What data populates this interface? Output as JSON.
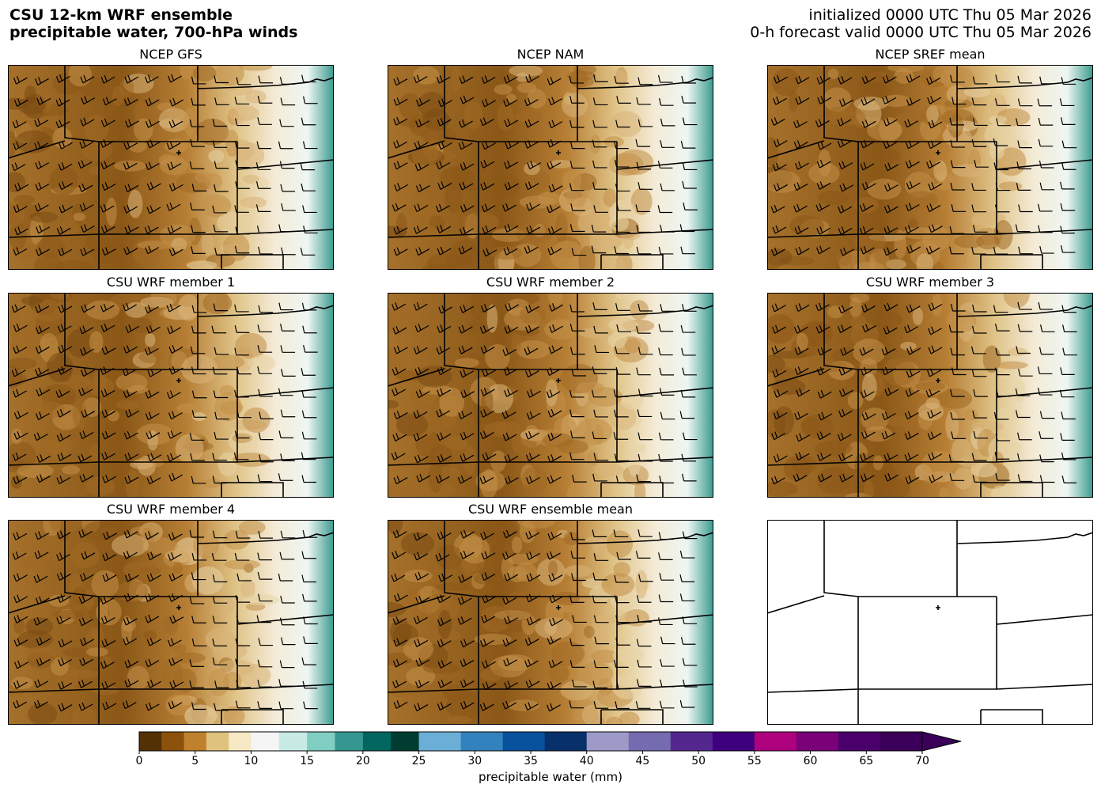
{
  "header": {
    "title_line1": "CSU 12-km WRF ensemble",
    "title_line2": "precipitable water, 700-hPa winds",
    "init_line": "initialized 0000 UTC Thu 05 Mar 2026",
    "valid_line": "0-h forecast valid 0000 UTC Thu 05 Mar 2026"
  },
  "panels": [
    {
      "title": "NCEP GFS",
      "field": "filled"
    },
    {
      "title": "NCEP NAM",
      "field": "filled"
    },
    {
      "title": "NCEP SREF mean",
      "field": "filled"
    },
    {
      "title": "CSU WRF member 1",
      "field": "filled"
    },
    {
      "title": "CSU WRF member 2",
      "field": "filled"
    },
    {
      "title": "CSU WRF member 3",
      "field": "filled"
    },
    {
      "title": "CSU WRF member 4",
      "field": "filled"
    },
    {
      "title": "CSU WRF ensemble mean",
      "field": "filled"
    },
    {
      "title": "",
      "field": "empty"
    }
  ],
  "colorbar": {
    "label": "precipitable water (mm)",
    "ticks": [
      "0",
      "5",
      "10",
      "15",
      "20",
      "25",
      "30",
      "35",
      "40",
      "45",
      "50",
      "55",
      "60",
      "65",
      "70"
    ],
    "segments": [
      {
        "from": 0,
        "to": 10,
        "colors": [
          "#543005",
          "#8c510a",
          "#bf812d",
          "#dfc27d",
          "#f6e8c3"
        ]
      },
      {
        "from": 10,
        "to": 25,
        "colors": [
          "#f5f5f5",
          "#c7eae5",
          "#80cdc1",
          "#35978f",
          "#01665e",
          "#003c30"
        ]
      },
      {
        "from": 25,
        "to": 40,
        "colors": [
          "#6baed6",
          "#3182bd",
          "#08519c",
          "#08306b"
        ]
      },
      {
        "from": 40,
        "to": 55,
        "colors": [
          "#9e9ac8",
          "#756bb1",
          "#54278f",
          "#3f007d"
        ]
      },
      {
        "from": 55,
        "to": 70,
        "colors": [
          "#ae017e",
          "#7a0177",
          "#49006a",
          "#3a0059"
        ]
      }
    ],
    "extend": "max"
  }
}
